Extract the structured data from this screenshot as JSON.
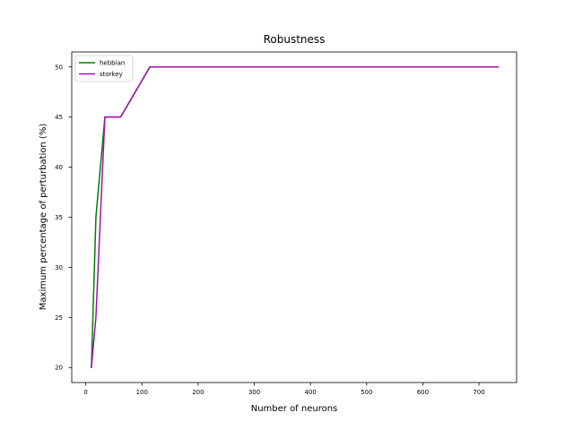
{
  "chart_data": {
    "type": "line",
    "title": "Robustness",
    "xlabel": "Number of neurons",
    "ylabel": "Maximum percentage of perturbation (%)",
    "xlim": [
      -25,
      767
    ],
    "ylim": [
      18.5,
      51.5
    ],
    "xticks": [
      0,
      100,
      200,
      300,
      400,
      500,
      600,
      700
    ],
    "yticks": [
      20,
      25,
      30,
      35,
      40,
      45,
      50
    ],
    "grid": false,
    "legend_position": "top-left",
    "series": [
      {
        "name": "hebbian",
        "color": "#008000",
        "x": [
          10,
          18,
          34,
          62,
          114,
          734
        ],
        "y": [
          20,
          35,
          45,
          45,
          50,
          50
        ]
      },
      {
        "name": "storkey",
        "color": "#a30fb0",
        "x": [
          10,
          18,
          34,
          62,
          114,
          734
        ],
        "y": [
          20,
          25,
          45,
          45,
          50,
          50
        ]
      }
    ]
  }
}
